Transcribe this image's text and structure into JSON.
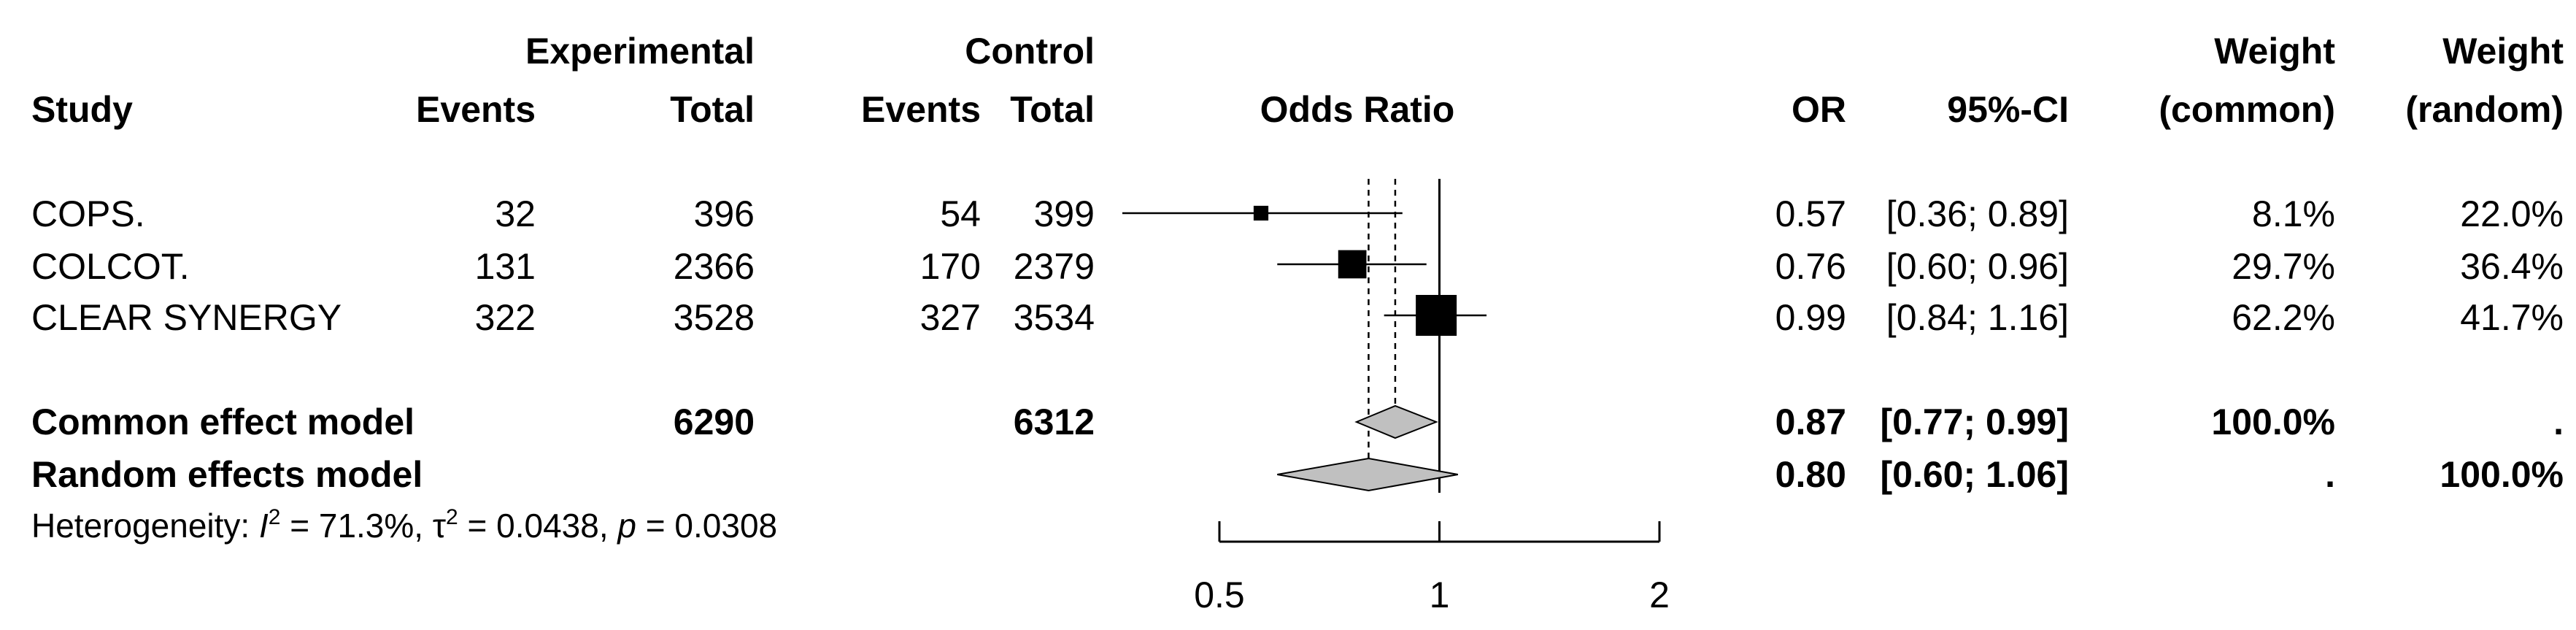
{
  "header": {
    "group_experimental": "Experimental",
    "group_control": "Control",
    "study": "Study",
    "events": "Events",
    "total": "Total",
    "odds_ratio": "Odds Ratio",
    "or": "OR",
    "ci": "95%-CI",
    "weight": "Weight",
    "common": "(common)",
    "random": "(random)"
  },
  "rows": [
    {
      "study": "COPS.",
      "e_events": "32",
      "e_total": "396",
      "c_events": "54",
      "c_total": "399",
      "or": "0.57",
      "ci": "[0.36; 0.89]",
      "w_common": "8.1%",
      "w_random": "22.0%"
    },
    {
      "study": "COLCOT.",
      "e_events": "131",
      "e_total": "2366",
      "c_events": "170",
      "c_total": "2379",
      "or": "0.76",
      "ci": "[0.60; 0.96]",
      "w_common": "29.7%",
      "w_random": "36.4%"
    },
    {
      "study": "CLEAR SYNERGY",
      "e_events": "322",
      "e_total": "3528",
      "c_events": "327",
      "c_total": "3534",
      "or": "0.99",
      "ci": "[0.84; 1.16]",
      "w_common": "62.2%",
      "w_random": "41.7%"
    }
  ],
  "summary": {
    "common": {
      "label": "Common effect model",
      "e_total": "6290",
      "c_total": "6312",
      "or": "0.87",
      "ci": "[0.77; 0.99]",
      "w_common": "100.0%",
      "w_random": "."
    },
    "random": {
      "label": "Random effects model",
      "or": "0.80",
      "ci": "[0.60; 1.06]",
      "w_common": ".",
      "w_random": "100.0%"
    }
  },
  "heterogeneity": {
    "prefix": "Heterogeneity: ",
    "i2_symbol": "I",
    "i2_value": " = 71.3%, ",
    "tau2_symbol": "τ",
    "tau2_value": " = 0.0438, ",
    "p_symbol": "p",
    "p_value": " = 0.0308",
    "sup": "2"
  },
  "chart_data": {
    "type": "scatter",
    "subtype": "forest-plot",
    "title": "Odds Ratio",
    "xscale": "log",
    "xlim": [
      0.5,
      2
    ],
    "xticks": [
      0.5,
      1,
      2
    ],
    "xtick_labels": [
      "0.5",
      "1",
      "2"
    ],
    "reference_line": 1,
    "studies": [
      {
        "name": "COPS.",
        "or": 0.57,
        "lower": 0.36,
        "upper": 0.89,
        "weight_common": 8.1
      },
      {
        "name": "COLCOT.",
        "or": 0.76,
        "lower": 0.6,
        "upper": 0.96,
        "weight_common": 29.7
      },
      {
        "name": "CLEAR SYNERGY",
        "or": 0.99,
        "lower": 0.84,
        "upper": 1.16,
        "weight_common": 62.2
      }
    ],
    "pooled": [
      {
        "name": "Common effect model",
        "or": 0.87,
        "lower": 0.77,
        "upper": 0.99
      },
      {
        "name": "Random effects model",
        "or": 0.8,
        "lower": 0.6,
        "upper": 1.06
      }
    ],
    "diamond_color": "#c0c0c0",
    "box_color": "#000000"
  }
}
